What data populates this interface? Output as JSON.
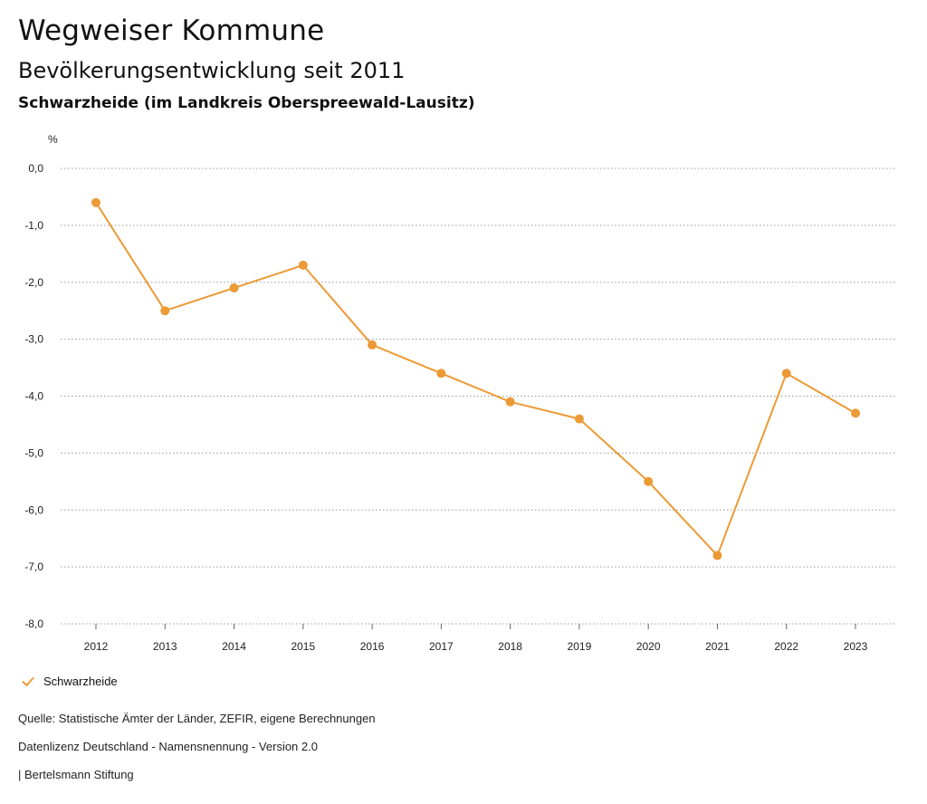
{
  "header": {
    "title": "Wegweiser Kommune",
    "subtitle": "Bevölkerungsentwicklung seit 2011",
    "place": "Schwarzheide (im Landkreis Oberspreewald-Lausitz)"
  },
  "chart_data": {
    "type": "line",
    "ylabel": "%",
    "ylim": [
      -8.0,
      0.0
    ],
    "yticks": [
      "0,0",
      "-1,0",
      "-2,0",
      "-3,0",
      "-4,0",
      "-5,0",
      "-6,0",
      "-7,0",
      "-8,0"
    ],
    "categories": [
      "2012",
      "2013",
      "2014",
      "2015",
      "2016",
      "2017",
      "2018",
      "2019",
      "2020",
      "2021",
      "2022",
      "2023"
    ],
    "series": [
      {
        "name": "Schwarzheide",
        "color": "#ec9a35",
        "values": [
          -0.6,
          -2.5,
          -2.1,
          -1.7,
          -3.1,
          -3.6,
          -4.1,
          -4.4,
          -5.5,
          -6.8,
          -3.6,
          -4.3
        ]
      }
    ],
    "grid": true,
    "legend": "bottom-left"
  },
  "legend": {
    "label": "Schwarzheide",
    "icon": "check-icon"
  },
  "footer": {
    "source": "Quelle: Statistische Ämter der Länder, ZEFIR, eigene Berechnungen",
    "license": "Datenlizenz Deutschland - Namensnennung - Version 2.0",
    "publisher": "| Bertelsmann Stiftung"
  }
}
